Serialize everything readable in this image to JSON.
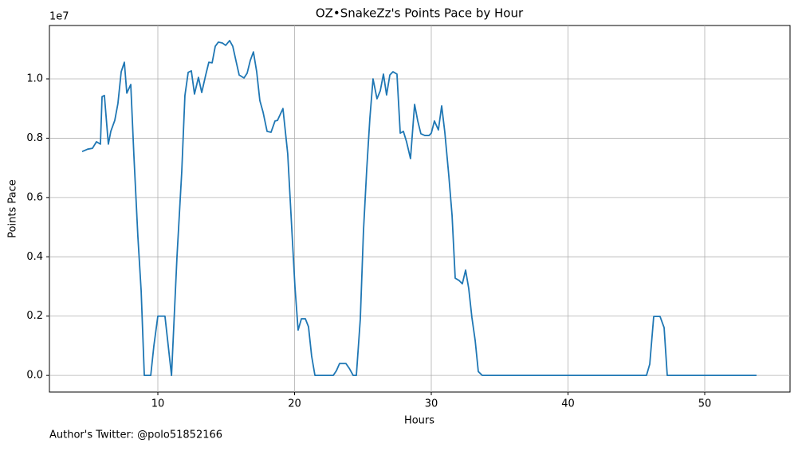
{
  "chart_data": {
    "type": "line",
    "title": "OZ•SnakeZz's Points Pace by Hour",
    "x_label": "Hours",
    "y_label": "Points Pace",
    "y_offset_label": "1e7",
    "footnote": "Author's Twitter: @polo51852166",
    "grid": true,
    "xlim": [
      2.07,
      56.24
    ],
    "xticks": [
      10,
      20,
      30,
      40,
      50
    ],
    "ylim": [
      -0.056,
      1.18
    ],
    "yticks": [
      {
        "value": 0,
        "label": "0.0"
      },
      0.2,
      0.4,
      0.6,
      0.8,
      {
        "value": 1,
        "label": "1.0"
      }
    ],
    "series": [
      {
        "color": "#1f77b4",
        "x": [
          4.46,
          4.87,
          5.22,
          5.51,
          5.8,
          5.92,
          6.09,
          6.38,
          6.56,
          6.85,
          7.08,
          7.32,
          7.55,
          7.73,
          8.02,
          8.25,
          8.54,
          8.78,
          9.01,
          9.48,
          9.71,
          10.0,
          10.52,
          11.0,
          11.4,
          11.75,
          11.98,
          12.22,
          12.45,
          12.68,
          12.97,
          13.21,
          13.5,
          13.73,
          13.97,
          14.2,
          14.43,
          14.72,
          14.96,
          15.25,
          15.48,
          15.71,
          15.95,
          16.3,
          16.53,
          16.76,
          16.99,
          17.23,
          17.46,
          17.7,
          17.99,
          18.28,
          18.57,
          18.75,
          19.15,
          19.5,
          19.8,
          20.03,
          20.26,
          20.5,
          20.79,
          21.02,
          21.25,
          21.49,
          22.83,
          23.06,
          23.29,
          23.76,
          24.0,
          24.29,
          24.52,
          24.81,
          25.04,
          25.28,
          25.51,
          25.74,
          26.03,
          26.27,
          26.5,
          26.73,
          26.97,
          27.2,
          27.49,
          27.73,
          27.96,
          28.19,
          28.48,
          28.78,
          29.01,
          29.24,
          29.53,
          29.83,
          30.0,
          30.23,
          30.52,
          30.76,
          30.99,
          31.28,
          31.52,
          31.75,
          32.04,
          32.27,
          32.51,
          32.74,
          32.97,
          33.21,
          33.44,
          33.73,
          45.74,
          45.98,
          46.27,
          46.73,
          47.03,
          47.26,
          53.79
        ],
        "values": [
          0.755,
          0.763,
          0.766,
          0.788,
          0.78,
          0.94,
          0.944,
          0.78,
          0.823,
          0.86,
          0.917,
          1.024,
          1.056,
          0.952,
          0.981,
          0.74,
          0.468,
          0.285,
          0,
          0,
          0.1,
          0.2,
          0.2,
          0,
          0.4,
          0.688,
          0.944,
          1.022,
          1.027,
          0.949,
          1.005,
          0.954,
          1.013,
          1.056,
          1.054,
          1.11,
          1.124,
          1.121,
          1.113,
          1.129,
          1.11,
          1.062,
          1.013,
          1.003,
          1.019,
          1.062,
          1.091,
          1.024,
          0.927,
          0.887,
          0.823,
          0.82,
          0.858,
          0.86,
          0.9,
          0.747,
          0.492,
          0.298,
          0.153,
          0.191,
          0.191,
          0.164,
          0.065,
          0,
          0,
          0.016,
          0.04,
          0.04,
          0.024,
          0,
          0,
          0.191,
          0.487,
          0.696,
          0.868,
          1.0,
          0.933,
          0.96,
          1.016,
          0.946,
          1.013,
          1.024,
          1.016,
          0.817,
          0.823,
          0.788,
          0.731,
          0.914,
          0.858,
          0.815,
          0.809,
          0.809,
          0.817,
          0.858,
          0.828,
          0.909,
          0.82,
          0.675,
          0.54,
          0.328,
          0.32,
          0.309,
          0.355,
          0.293,
          0.196,
          0.118,
          0.013,
          0,
          0,
          0.038,
          0.199,
          0.199,
          0.161,
          0,
          0
        ]
      }
    ]
  }
}
